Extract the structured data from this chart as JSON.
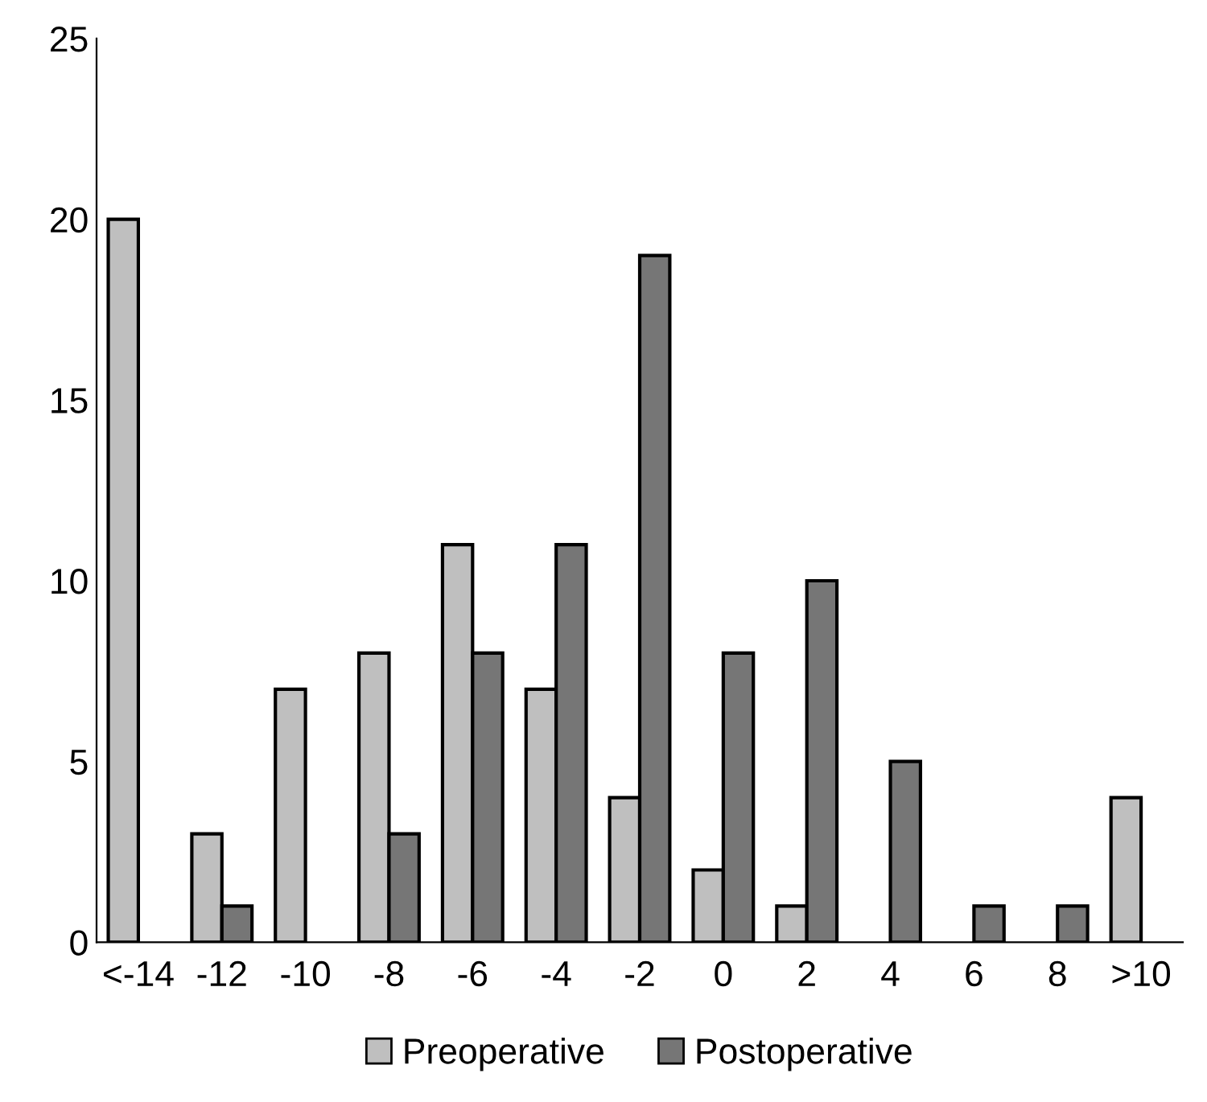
{
  "chart_data": {
    "type": "bar",
    "categories": [
      "<-14",
      "-12",
      "-10",
      "-8",
      "-6",
      "-4",
      "-2",
      "0",
      "2",
      "4",
      "6",
      "8",
      ">10"
    ],
    "series": [
      {
        "name": "Preoperative",
        "color": "#bfbfbf",
        "values": [
          20,
          3,
          7,
          8,
          11,
          7,
          4,
          2,
          1,
          0,
          0,
          0,
          4
        ]
      },
      {
        "name": "Postoperative",
        "color": "#767676",
        "values": [
          0,
          1,
          0,
          3,
          8,
          11,
          19,
          8,
          10,
          5,
          1,
          1,
          0
        ]
      }
    ],
    "ylim": [
      0,
      25
    ],
    "yticks": [
      0,
      5,
      10,
      15,
      20,
      25
    ],
    "grid": false,
    "legend": "bottom"
  }
}
